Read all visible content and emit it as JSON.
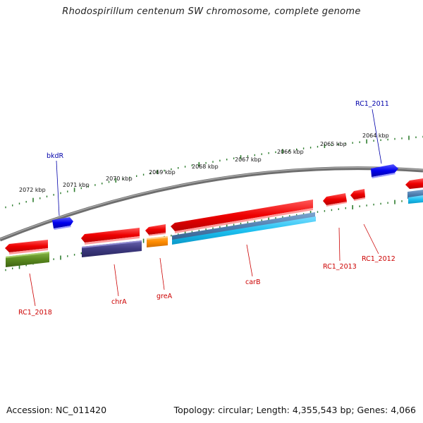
{
  "title": "Rhodospirillum centenum SW chromosome, complete genome",
  "footer": {
    "accession": "Accession: NC_011420",
    "topology": "Topology: circular; Length: 4,355,543 bp; Genes: 4,066"
  },
  "colors": {
    "backbone": "#808080",
    "ticks": "#2e7d2e",
    "label_red": "#cc0000",
    "label_blue": "#0000aa",
    "gene_red": "#ee0000",
    "gene_blue": "#0000ee",
    "gene_olive": "#5a8a1e",
    "gene_purple": "#3e3a80",
    "gene_orange": "#ff8c00",
    "gene_steel": "#4f7fb0",
    "gene_cyan": "#1ec0f0"
  },
  "scale_labels": [
    {
      "text": "2072 kbp"
    },
    {
      "text": "2071 kbp"
    },
    {
      "text": "2070 kbp"
    },
    {
      "text": "2069 kbp"
    },
    {
      "text": "2068 kbp"
    },
    {
      "text": "2067 kbp"
    },
    {
      "text": "2066 kbp"
    },
    {
      "text": "2065 kbp"
    },
    {
      "text": "2064 kbp"
    }
  ],
  "gene_labels": [
    {
      "name": "bkdR",
      "color": "blue"
    },
    {
      "name": "RC1_2011",
      "color": "blue"
    },
    {
      "name": "RC1_2018",
      "color": "red"
    },
    {
      "name": "chrA",
      "color": "red"
    },
    {
      "name": "greA",
      "color": "red"
    },
    {
      "name": "carB",
      "color": "red"
    },
    {
      "name": "RC1_2013",
      "color": "red"
    },
    {
      "name": "RC1_2012",
      "color": "red"
    }
  ]
}
